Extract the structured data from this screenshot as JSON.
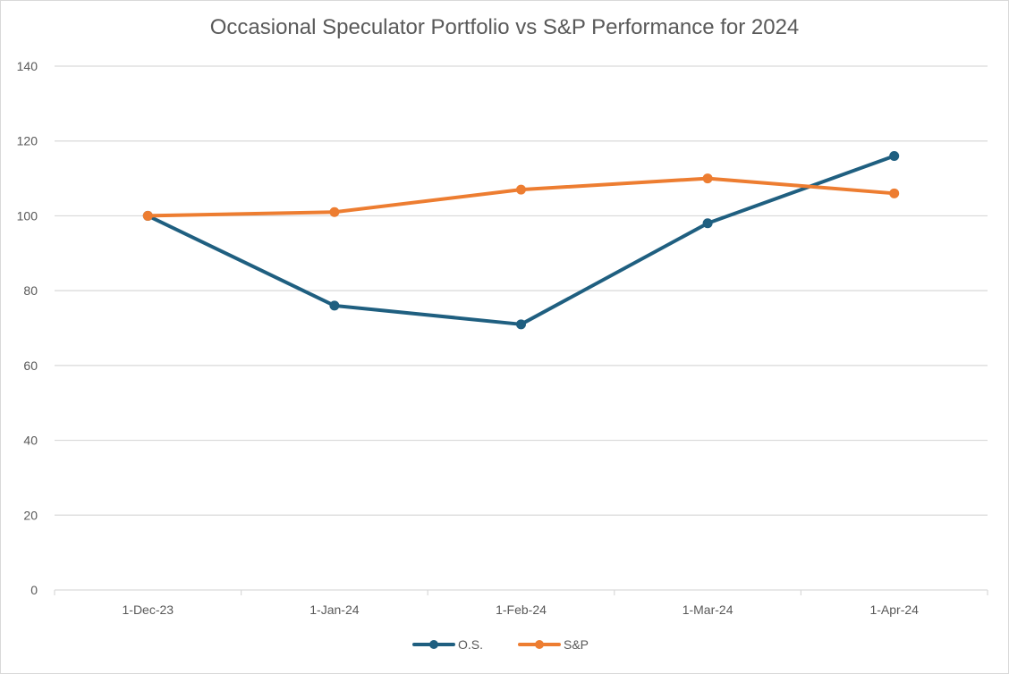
{
  "chart_data": {
    "type": "line",
    "title": "Occasional Speculator Portfolio vs S&P Performance for 2024",
    "xlabel": "",
    "ylabel": "",
    "categories": [
      "1-Dec-23",
      "1-Jan-24",
      "1-Feb-24",
      "1-Mar-24",
      "1-Apr-24"
    ],
    "ylim": [
      0,
      140
    ],
    "yticks": [
      0,
      20,
      40,
      60,
      80,
      100,
      120,
      140
    ],
    "grid": true,
    "legend_position": "bottom",
    "series": [
      {
        "name": "O.S.",
        "color": "#1f5f80",
        "values": [
          100,
          76,
          71,
          98,
          116
        ]
      },
      {
        "name": "S&P",
        "color": "#ed7d31",
        "values": [
          100,
          101,
          107,
          110,
          106
        ]
      }
    ]
  }
}
